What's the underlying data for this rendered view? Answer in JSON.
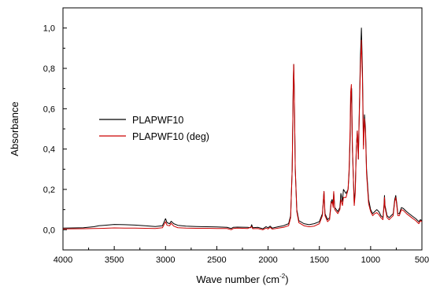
{
  "chart_data": {
    "type": "line",
    "xlabel": "Wave number (cm",
    "xlabel_sup": "-2",
    "xlabel_close": ")",
    "ylabel": "Absorbance",
    "xlim": [
      4000,
      500
    ],
    "ylim": [
      -0.1,
      1.1
    ],
    "x_ticks": [
      4000,
      3500,
      3000,
      2500,
      2000,
      1500,
      1000,
      500
    ],
    "x_tick_labels": [
      "4000",
      "3500",
      "3000",
      "2500",
      "2000",
      "1500",
      "1000",
      "500"
    ],
    "y_ticks": [
      0.0,
      0.2,
      0.4,
      0.6,
      0.8,
      1.0
    ],
    "y_tick_labels": [
      "0,0",
      "0,2",
      "0,4",
      "0,6",
      "0,8",
      "1,0"
    ],
    "grid": false,
    "legend_position": "center-left",
    "series": [
      {
        "name": "PLAPWF10",
        "color": "#000000",
        "points": [
          [
            4000,
            0.008
          ],
          [
            3800,
            0.01
          ],
          [
            3700,
            0.015
          ],
          [
            3650,
            0.02
          ],
          [
            3600,
            0.022
          ],
          [
            3500,
            0.026
          ],
          [
            3400,
            0.025
          ],
          [
            3300,
            0.023
          ],
          [
            3200,
            0.02
          ],
          [
            3100,
            0.016
          ],
          [
            3030,
            0.02
          ],
          [
            3000,
            0.055
          ],
          [
            2985,
            0.035
          ],
          [
            2960,
            0.03
          ],
          [
            2945,
            0.042
          ],
          [
            2920,
            0.03
          ],
          [
            2880,
            0.022
          ],
          [
            2800,
            0.018
          ],
          [
            2700,
            0.016
          ],
          [
            2600,
            0.015
          ],
          [
            2500,
            0.014
          ],
          [
            2400,
            0.012
          ],
          [
            2360,
            0.006
          ],
          [
            2340,
            0.012
          ],
          [
            2300,
            0.013
          ],
          [
            2200,
            0.012
          ],
          [
            2170,
            0.01
          ],
          [
            2160,
            0.025
          ],
          [
            2150,
            0.01
          ],
          [
            2100,
            0.012
          ],
          [
            2050,
            0.005
          ],
          [
            2020,
            0.015
          ],
          [
            2000,
            0.01
          ],
          [
            1980,
            0.018
          ],
          [
            1960,
            0.008
          ],
          [
            1900,
            0.015
          ],
          [
            1850,
            0.02
          ],
          [
            1800,
            0.03
          ],
          [
            1780,
            0.07
          ],
          [
            1765,
            0.3
          ],
          [
            1755,
            0.7
          ],
          [
            1750,
            0.82
          ],
          [
            1745,
            0.7
          ],
          [
            1735,
            0.3
          ],
          [
            1720,
            0.1
          ],
          [
            1700,
            0.045
          ],
          [
            1650,
            0.03
          ],
          [
            1600,
            0.025
          ],
          [
            1550,
            0.03
          ],
          [
            1500,
            0.04
          ],
          [
            1470,
            0.08
          ],
          [
            1455,
            0.19
          ],
          [
            1445,
            0.08
          ],
          [
            1420,
            0.05
          ],
          [
            1400,
            0.06
          ],
          [
            1385,
            0.14
          ],
          [
            1375,
            0.15
          ],
          [
            1365,
            0.12
          ],
          [
            1360,
            0.185
          ],
          [
            1350,
            0.11
          ],
          [
            1320,
            0.09
          ],
          [
            1300,
            0.11
          ],
          [
            1290,
            0.18
          ],
          [
            1275,
            0.14
          ],
          [
            1265,
            0.2
          ],
          [
            1240,
            0.18
          ],
          [
            1220,
            0.2
          ],
          [
            1210,
            0.28
          ],
          [
            1200,
            0.45
          ],
          [
            1195,
            0.62
          ],
          [
            1185,
            0.7
          ],
          [
            1178,
            0.4
          ],
          [
            1160,
            0.13
          ],
          [
            1150,
            0.2
          ],
          [
            1140,
            0.4
          ],
          [
            1130,
            0.49
          ],
          [
            1120,
            0.35
          ],
          [
            1110,
            0.6
          ],
          [
            1100,
            0.85
          ],
          [
            1090,
            1.0
          ],
          [
            1080,
            0.8
          ],
          [
            1070,
            0.42
          ],
          [
            1060,
            0.57
          ],
          [
            1050,
            0.5
          ],
          [
            1040,
            0.3
          ],
          [
            1020,
            0.15
          ],
          [
            1000,
            0.1
          ],
          [
            980,
            0.08
          ],
          [
            960,
            0.09
          ],
          [
            940,
            0.1
          ],
          [
            920,
            0.09
          ],
          [
            900,
            0.07
          ],
          [
            880,
            0.06
          ],
          [
            870,
            0.12
          ],
          [
            865,
            0.17
          ],
          [
            860,
            0.12
          ],
          [
            840,
            0.07
          ],
          [
            820,
            0.06
          ],
          [
            800,
            0.07
          ],
          [
            780,
            0.08
          ],
          [
            765,
            0.15
          ],
          [
            755,
            0.17
          ],
          [
            745,
            0.13
          ],
          [
            735,
            0.08
          ],
          [
            720,
            0.08
          ],
          [
            700,
            0.11
          ],
          [
            680,
            0.105
          ],
          [
            650,
            0.09
          ],
          [
            600,
            0.07
          ],
          [
            560,
            0.055
          ],
          [
            530,
            0.04
          ],
          [
            515,
            0.05
          ],
          [
            500,
            0.045
          ]
        ]
      },
      {
        "name": "PLAPWF10 (deg)",
        "color": "#cc0000",
        "points": [
          [
            4000,
            0.004
          ],
          [
            3800,
            0.005
          ],
          [
            3700,
            0.006
          ],
          [
            3600,
            0.007
          ],
          [
            3500,
            0.009
          ],
          [
            3400,
            0.008
          ],
          [
            3300,
            0.008
          ],
          [
            3200,
            0.007
          ],
          [
            3100,
            0.006
          ],
          [
            3030,
            0.01
          ],
          [
            3000,
            0.04
          ],
          [
            2985,
            0.022
          ],
          [
            2960,
            0.02
          ],
          [
            2945,
            0.032
          ],
          [
            2920,
            0.018
          ],
          [
            2880,
            0.01
          ],
          [
            2800,
            0.008
          ],
          [
            2700,
            0.007
          ],
          [
            2600,
            0.007
          ],
          [
            2500,
            0.006
          ],
          [
            2400,
            0.006
          ],
          [
            2360,
            0.0
          ],
          [
            2340,
            0.006
          ],
          [
            2300,
            0.008
          ],
          [
            2200,
            0.006
          ],
          [
            2160,
            0.015
          ],
          [
            2150,
            0.005
          ],
          [
            2100,
            0.006
          ],
          [
            2050,
            0.0
          ],
          [
            2020,
            0.008
          ],
          [
            2000,
            0.004
          ],
          [
            1980,
            0.012
          ],
          [
            1960,
            0.003
          ],
          [
            1900,
            0.008
          ],
          [
            1850,
            0.012
          ],
          [
            1800,
            0.02
          ],
          [
            1780,
            0.06
          ],
          [
            1765,
            0.3
          ],
          [
            1755,
            0.7
          ],
          [
            1750,
            0.82
          ],
          [
            1745,
            0.7
          ],
          [
            1735,
            0.3
          ],
          [
            1720,
            0.09
          ],
          [
            1700,
            0.035
          ],
          [
            1650,
            0.02
          ],
          [
            1600,
            0.015
          ],
          [
            1550,
            0.018
          ],
          [
            1500,
            0.03
          ],
          [
            1470,
            0.07
          ],
          [
            1455,
            0.19
          ],
          [
            1445,
            0.07
          ],
          [
            1420,
            0.04
          ],
          [
            1400,
            0.05
          ],
          [
            1385,
            0.13
          ],
          [
            1375,
            0.14
          ],
          [
            1365,
            0.11
          ],
          [
            1360,
            0.19
          ],
          [
            1350,
            0.1
          ],
          [
            1320,
            0.08
          ],
          [
            1300,
            0.1
          ],
          [
            1290,
            0.15
          ],
          [
            1275,
            0.12
          ],
          [
            1265,
            0.16
          ],
          [
            1240,
            0.16
          ],
          [
            1220,
            0.2
          ],
          [
            1210,
            0.3
          ],
          [
            1200,
            0.5
          ],
          [
            1195,
            0.68
          ],
          [
            1188,
            0.72
          ],
          [
            1178,
            0.42
          ],
          [
            1160,
            0.12
          ],
          [
            1150,
            0.18
          ],
          [
            1140,
            0.4
          ],
          [
            1130,
            0.49
          ],
          [
            1120,
            0.35
          ],
          [
            1110,
            0.58
          ],
          [
            1100,
            0.8
          ],
          [
            1090,
            0.94
          ],
          [
            1080,
            0.75
          ],
          [
            1070,
            0.4
          ],
          [
            1060,
            0.55
          ],
          [
            1050,
            0.48
          ],
          [
            1040,
            0.28
          ],
          [
            1020,
            0.13
          ],
          [
            1000,
            0.09
          ],
          [
            980,
            0.07
          ],
          [
            960,
            0.08
          ],
          [
            940,
            0.085
          ],
          [
            920,
            0.075
          ],
          [
            900,
            0.06
          ],
          [
            880,
            0.05
          ],
          [
            870,
            0.11
          ],
          [
            865,
            0.16
          ],
          [
            860,
            0.11
          ],
          [
            840,
            0.06
          ],
          [
            820,
            0.05
          ],
          [
            800,
            0.06
          ],
          [
            780,
            0.07
          ],
          [
            765,
            0.14
          ],
          [
            755,
            0.16
          ],
          [
            745,
            0.12
          ],
          [
            735,
            0.07
          ],
          [
            720,
            0.07
          ],
          [
            700,
            0.1
          ],
          [
            680,
            0.095
          ],
          [
            650,
            0.08
          ],
          [
            600,
            0.06
          ],
          [
            560,
            0.045
          ],
          [
            530,
            0.03
          ],
          [
            515,
            0.045
          ],
          [
            500,
            0.04
          ]
        ]
      }
    ]
  }
}
